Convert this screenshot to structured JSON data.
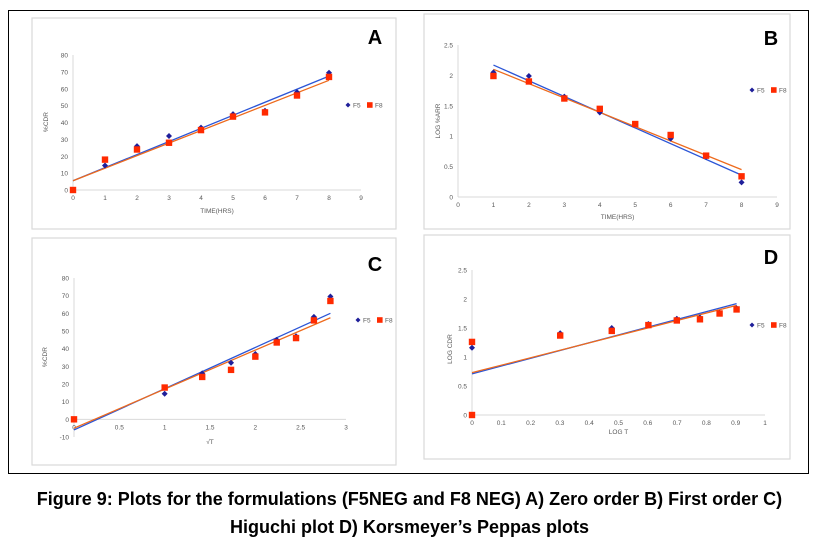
{
  "figure": {
    "caption_line1": "Figure 9: Plots for the formulations (F5NEG and F8 NEG) A) Zero order B) First order C)",
    "caption_line2": "Higuchi plot D) Korsmeyer’s Peppas plots"
  },
  "colors": {
    "F5": "#1f1f9a",
    "F8": "#ff2a00",
    "F5_trend": "#2b55d6",
    "F8_trend": "#ee6a1c",
    "axis": "#d9d9d9",
    "panel_border": "#d9d9d9",
    "tick_text": "#595959"
  },
  "chart_data": [
    {
      "panel": "A",
      "type": "scatter",
      "title": "Zero order",
      "panel_label": "A",
      "xlabel": "TIME(HRS)",
      "ylabel": "%CDR",
      "xlim": [
        0,
        9
      ],
      "ylim": [
        0,
        80
      ],
      "xticks": [
        "0",
        "1",
        "2",
        "3",
        "4",
        "5",
        "6",
        "7",
        "8",
        "9"
      ],
      "xtick_values": [
        0,
        1,
        2,
        3,
        4,
        5,
        6,
        7,
        8,
        9
      ],
      "yticks": [
        "0",
        "10",
        "20",
        "30",
        "40",
        "50",
        "60",
        "70",
        "80"
      ],
      "ytick_values": [
        0,
        10,
        20,
        30,
        40,
        50,
        60,
        70,
        80
      ],
      "grid": false,
      "legend": "right",
      "series": [
        {
          "name": "F5",
          "marker": "diamond",
          "x": [
            0,
            1,
            2,
            3,
            4,
            5,
            6,
            7,
            8
          ],
          "y": [
            0,
            14.5,
            26,
            32,
            37,
            45,
            47,
            58,
            69.5
          ],
          "trend": [
            [
              0,
              5.5
            ],
            [
              8,
              67.5
            ]
          ]
        },
        {
          "name": "F8",
          "marker": "square",
          "x": [
            0,
            1,
            2,
            3,
            4,
            5,
            6,
            7,
            8
          ],
          "y": [
            0,
            18,
            24,
            28,
            35.5,
            43.5,
            46,
            56,
            67
          ],
          "trend": [
            [
              0,
              5.5
            ],
            [
              8,
              65
            ]
          ]
        }
      ]
    },
    {
      "panel": "B",
      "type": "scatter",
      "title": "First order",
      "panel_label": "B",
      "xlabel": "TIME(HRS)",
      "ylabel": "LOG %ARR",
      "xlim": [
        0,
        9
      ],
      "ylim": [
        0,
        2.5
      ],
      "xticks": [
        "0",
        "1",
        "2",
        "3",
        "4",
        "5",
        "6",
        "7",
        "8",
        "9"
      ],
      "xtick_values": [
        0,
        1,
        2,
        3,
        4,
        5,
        6,
        7,
        8,
        9
      ],
      "yticks": [
        "0",
        "0.5",
        "1",
        "1.5",
        "2",
        "2.5"
      ],
      "ytick_values": [
        0,
        0.5,
        1,
        1.5,
        2,
        2.5
      ],
      "grid": false,
      "legend": "right",
      "series": [
        {
          "name": "F5",
          "marker": "diamond",
          "x": [
            1,
            2,
            3,
            4,
            5,
            6,
            7,
            8
          ],
          "y": [
            2.05,
            1.99,
            1.65,
            1.39,
            1.2,
            0.96,
            0.66,
            0.24
          ],
          "trend": [
            [
              1,
              2.17
            ],
            [
              8,
              0.36
            ]
          ]
        },
        {
          "name": "F8",
          "marker": "square",
          "x": [
            1,
            2,
            3,
            4,
            5,
            6,
            7,
            8
          ],
          "y": [
            1.99,
            1.9,
            1.62,
            1.45,
            1.2,
            1.02,
            0.68,
            0.34
          ],
          "trend": [
            [
              1,
              2.1
            ],
            [
              8,
              0.45
            ]
          ]
        }
      ]
    },
    {
      "panel": "C",
      "type": "scatter",
      "title": "Higuchi plot",
      "panel_label": "C",
      "xlabel": "√T",
      "ylabel": "%CDR",
      "xlim": [
        0,
        3
      ],
      "ylim": [
        -10,
        80
      ],
      "xticks": [
        "0",
        "0.5",
        "1",
        "1.5",
        "2",
        "2.5",
        "3"
      ],
      "xtick_values": [
        0,
        0.5,
        1,
        1.5,
        2,
        2.5,
        3
      ],
      "yticks": [
        "-10",
        "0",
        "10",
        "20",
        "30",
        "40",
        "50",
        "60",
        "70",
        "80"
      ],
      "ytick_values": [
        -10,
        0,
        10,
        20,
        30,
        40,
        50,
        60,
        70,
        80
      ],
      "grid": false,
      "legend": "right",
      "series": [
        {
          "name": "F5",
          "marker": "diamond",
          "x": [
            0,
            1,
            1.414,
            1.732,
            2,
            2.236,
            2.449,
            2.646,
            2.828
          ],
          "y": [
            0,
            14.5,
            26,
            32,
            37,
            45,
            47,
            58,
            69.5
          ],
          "trend": [
            [
              0,
              -6
            ],
            [
              2.828,
              60
            ]
          ]
        },
        {
          "name": "F8",
          "marker": "square",
          "x": [
            0,
            1,
            1.414,
            1.732,
            2,
            2.236,
            2.449,
            2.646,
            2.828
          ],
          "y": [
            0,
            18,
            24,
            28,
            35.5,
            43.5,
            46,
            56,
            67
          ],
          "trend": [
            [
              0,
              -5
            ],
            [
              2.828,
              57.5
            ]
          ]
        }
      ]
    },
    {
      "panel": "D",
      "type": "scatter",
      "title": "Korsmeyer’s Peppas plots",
      "panel_label": "D",
      "xlabel": "LOG T",
      "ylabel": "LOG CDR",
      "xlim": [
        0,
        1
      ],
      "ylim": [
        0,
        2.5
      ],
      "xticks": [
        "0",
        "0.1",
        "0.2",
        "0.3",
        "0.4",
        "0.5",
        "0.6",
        "0.7",
        "0.8",
        "0.9",
        "1"
      ],
      "xtick_values": [
        0,
        0.1,
        0.2,
        0.3,
        0.4,
        0.5,
        0.6,
        0.7,
        0.8,
        0.9,
        1
      ],
      "yticks": [
        "0",
        "0.5",
        "1",
        "1.5",
        "2",
        "2.5"
      ],
      "ytick_values": [
        0,
        0.5,
        1,
        1.5,
        2,
        2.5
      ],
      "grid": false,
      "legend": "right",
      "series": [
        {
          "name": "F5",
          "marker": "diamond",
          "x": [
            0,
            0,
            0.301,
            0.477,
            0.602,
            0.699,
            0.778,
            0.845,
            0.903
          ],
          "y": [
            0,
            1.16,
            1.41,
            1.5,
            1.57,
            1.66,
            1.68,
            1.76,
            1.84
          ],
          "trend": [
            [
              0,
              0.71
            ],
            [
              0.903,
              1.92
            ]
          ]
        },
        {
          "name": "F8",
          "marker": "square",
          "x": [
            0,
            0,
            0.301,
            0.477,
            0.602,
            0.699,
            0.778,
            0.845,
            0.903
          ],
          "y": [
            0,
            1.26,
            1.37,
            1.45,
            1.55,
            1.63,
            1.65,
            1.75,
            1.82
          ],
          "trend": [
            [
              0,
              0.73
            ],
            [
              0.903,
              1.89
            ]
          ]
        }
      ]
    }
  ]
}
